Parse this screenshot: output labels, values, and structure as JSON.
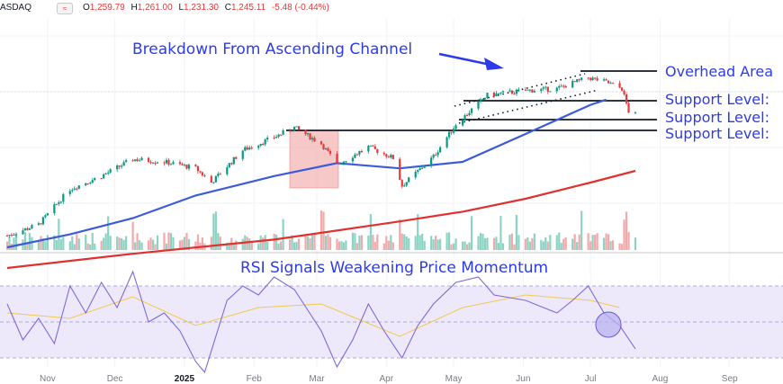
{
  "header": {
    "symbol": "ASDAQ",
    "badge_icon": "scale-icon",
    "open_label": "O",
    "open": "1,259.79",
    "high_label": "H",
    "high": "1,261.00",
    "low_label": "L",
    "low": "1,231.30",
    "close_label": "C",
    "close": "1,245.11",
    "change": "-5.48 (-0.44%)"
  },
  "colors": {
    "annotation": "#2d3be8",
    "up": "#089981",
    "down": "#e5393b",
    "sma50": "#3b5bdb",
    "sma200": "#e03131",
    "rsi": "#7e6bd6",
    "rsi_ma": "#f2c94c",
    "rsi_band": "#ede9fb",
    "highlight_box": "#f4b6b6",
    "circle": "#b9b3f0"
  },
  "chart_data": [
    {
      "type": "candlestick",
      "title": "Breakdown From Ascending Channel",
      "x_tick_labels": [
        "Nov",
        "Dec",
        "2025",
        "Feb",
        "Mar",
        "Apr",
        "May",
        "Jun",
        "Jul",
        "Aug",
        "Sep"
      ],
      "grid": true,
      "level_labels": [
        "Overhead Area",
        "Support Level:",
        "Support Level:",
        "Support Level:"
      ],
      "closing_path": [
        {
          "x": "2024-10-14",
          "y": 18
        },
        {
          "x": "2024-10-28",
          "y": 35
        },
        {
          "x": "2024-11-11",
          "y": 90
        },
        {
          "x": "2024-11-25",
          "y": 110
        },
        {
          "x": "2024-12-09",
          "y": 136
        },
        {
          "x": "2024-12-23",
          "y": 132
        },
        {
          "x": "2025-01-06",
          "y": 122
        },
        {
          "x": "2025-01-13",
          "y": 100
        },
        {
          "x": "2025-01-27",
          "y": 150
        },
        {
          "x": "2025-02-10",
          "y": 170
        },
        {
          "x": "2025-02-19",
          "y": 185
        },
        {
          "x": "2025-03-03",
          "y": 160
        },
        {
          "x": "2025-03-10",
          "y": 128
        },
        {
          "x": "2025-03-24",
          "y": 155
        },
        {
          "x": "2025-04-04",
          "y": 138
        },
        {
          "x": "2025-04-08",
          "y": 95
        },
        {
          "x": "2025-04-22",
          "y": 140
        },
        {
          "x": "2025-05-02",
          "y": 190
        },
        {
          "x": "2025-05-16",
          "y": 235
        },
        {
          "x": "2025-06-02",
          "y": 242
        },
        {
          "x": "2025-06-16",
          "y": 245
        },
        {
          "x": "2025-06-30",
          "y": 262
        },
        {
          "x": "2025-07-08",
          "y": 255
        },
        {
          "x": "2025-07-15",
          "y": 245
        },
        {
          "x": "2025-07-18",
          "y": 210
        },
        {
          "x": "2025-07-21",
          "y": 205
        }
      ],
      "sma50_path": [
        {
          "x": "2024-10-14",
          "y": 0
        },
        {
          "x": "2024-11-11",
          "y": 20
        },
        {
          "x": "2024-12-09",
          "y": 45
        },
        {
          "x": "2025-01-06",
          "y": 80
        },
        {
          "x": "2025-02-10",
          "y": 110
        },
        {
          "x": "2025-03-10",
          "y": 130
        },
        {
          "x": "2025-04-07",
          "y": 122
        },
        {
          "x": "2025-05-05",
          "y": 132
        },
        {
          "x": "2025-06-02",
          "y": 175
        },
        {
          "x": "2025-07-01",
          "y": 220
        },
        {
          "x": "2025-07-08",
          "y": 228
        }
      ],
      "sma200_path": [
        {
          "x": "2024-10-14",
          "y": -32
        },
        {
          "x": "2024-12-09",
          "y": -10
        },
        {
          "x": "2025-02-10",
          "y": 12
        },
        {
          "x": "2025-04-07",
          "y": 40
        },
        {
          "x": "2025-05-05",
          "y": 55
        },
        {
          "x": "2025-06-02",
          "y": 75
        },
        {
          "x": "2025-07-01",
          "y": 100
        },
        {
          "x": "2025-07-21",
          "y": 118
        }
      ]
    },
    {
      "type": "line",
      "title": "RSI Signals Weakening Price Momentum",
      "rsi_path": [
        {
          "x": "2024-10-14",
          "y": 60
        },
        {
          "x": "2024-10-21",
          "y": 40
        },
        {
          "x": "2024-10-28",
          "y": 52
        },
        {
          "x": "2024-11-04",
          "y": 38
        },
        {
          "x": "2024-11-11",
          "y": 70
        },
        {
          "x": "2024-11-18",
          "y": 55
        },
        {
          "x": "2024-11-25",
          "y": 72
        },
        {
          "x": "2024-12-02",
          "y": 58
        },
        {
          "x": "2024-12-09",
          "y": 78
        },
        {
          "x": "2024-12-16",
          "y": 50
        },
        {
          "x": "2024-12-23",
          "y": 55
        },
        {
          "x": "2024-12-30",
          "y": 45
        },
        {
          "x": "2025-01-06",
          "y": 28
        },
        {
          "x": "2025-01-10",
          "y": 22
        },
        {
          "x": "2025-01-20",
          "y": 62
        },
        {
          "x": "2025-01-27",
          "y": 70
        },
        {
          "x": "2025-02-03",
          "y": 65
        },
        {
          "x": "2025-02-10",
          "y": 75
        },
        {
          "x": "2025-02-19",
          "y": 68
        },
        {
          "x": "2025-03-03",
          "y": 45
        },
        {
          "x": "2025-03-10",
          "y": 25
        },
        {
          "x": "2025-03-17",
          "y": 40
        },
        {
          "x": "2025-03-24",
          "y": 60
        },
        {
          "x": "2025-03-31",
          "y": 45
        },
        {
          "x": "2025-04-08",
          "y": 30
        },
        {
          "x": "2025-04-15",
          "y": 48
        },
        {
          "x": "2025-04-22",
          "y": 60
        },
        {
          "x": "2025-05-02",
          "y": 72
        },
        {
          "x": "2025-05-12",
          "y": 75
        },
        {
          "x": "2025-05-19",
          "y": 65
        },
        {
          "x": "2025-06-02",
          "y": 62
        },
        {
          "x": "2025-06-16",
          "y": 55
        },
        {
          "x": "2025-06-23",
          "y": 62
        },
        {
          "x": "2025-06-30",
          "y": 70
        },
        {
          "x": "2025-07-07",
          "y": 55
        },
        {
          "x": "2025-07-14",
          "y": 48
        },
        {
          "x": "2025-07-21",
          "y": 35
        }
      ],
      "rsi_ma_path": [
        {
          "x": "2024-10-14",
          "y": 55
        },
        {
          "x": "2024-11-11",
          "y": 52
        },
        {
          "x": "2024-12-09",
          "y": 64
        },
        {
          "x": "2025-01-06",
          "y": 48
        },
        {
          "x": "2025-02-03",
          "y": 58
        },
        {
          "x": "2025-03-03",
          "y": 60
        },
        {
          "x": "2025-04-07",
          "y": 42
        },
        {
          "x": "2025-05-05",
          "y": 58
        },
        {
          "x": "2025-06-02",
          "y": 65
        },
        {
          "x": "2025-07-01",
          "y": 62
        },
        {
          "x": "2025-07-14",
          "y": 58
        }
      ],
      "overbought": 70,
      "oversold": 30,
      "midline": 50
    }
  ]
}
